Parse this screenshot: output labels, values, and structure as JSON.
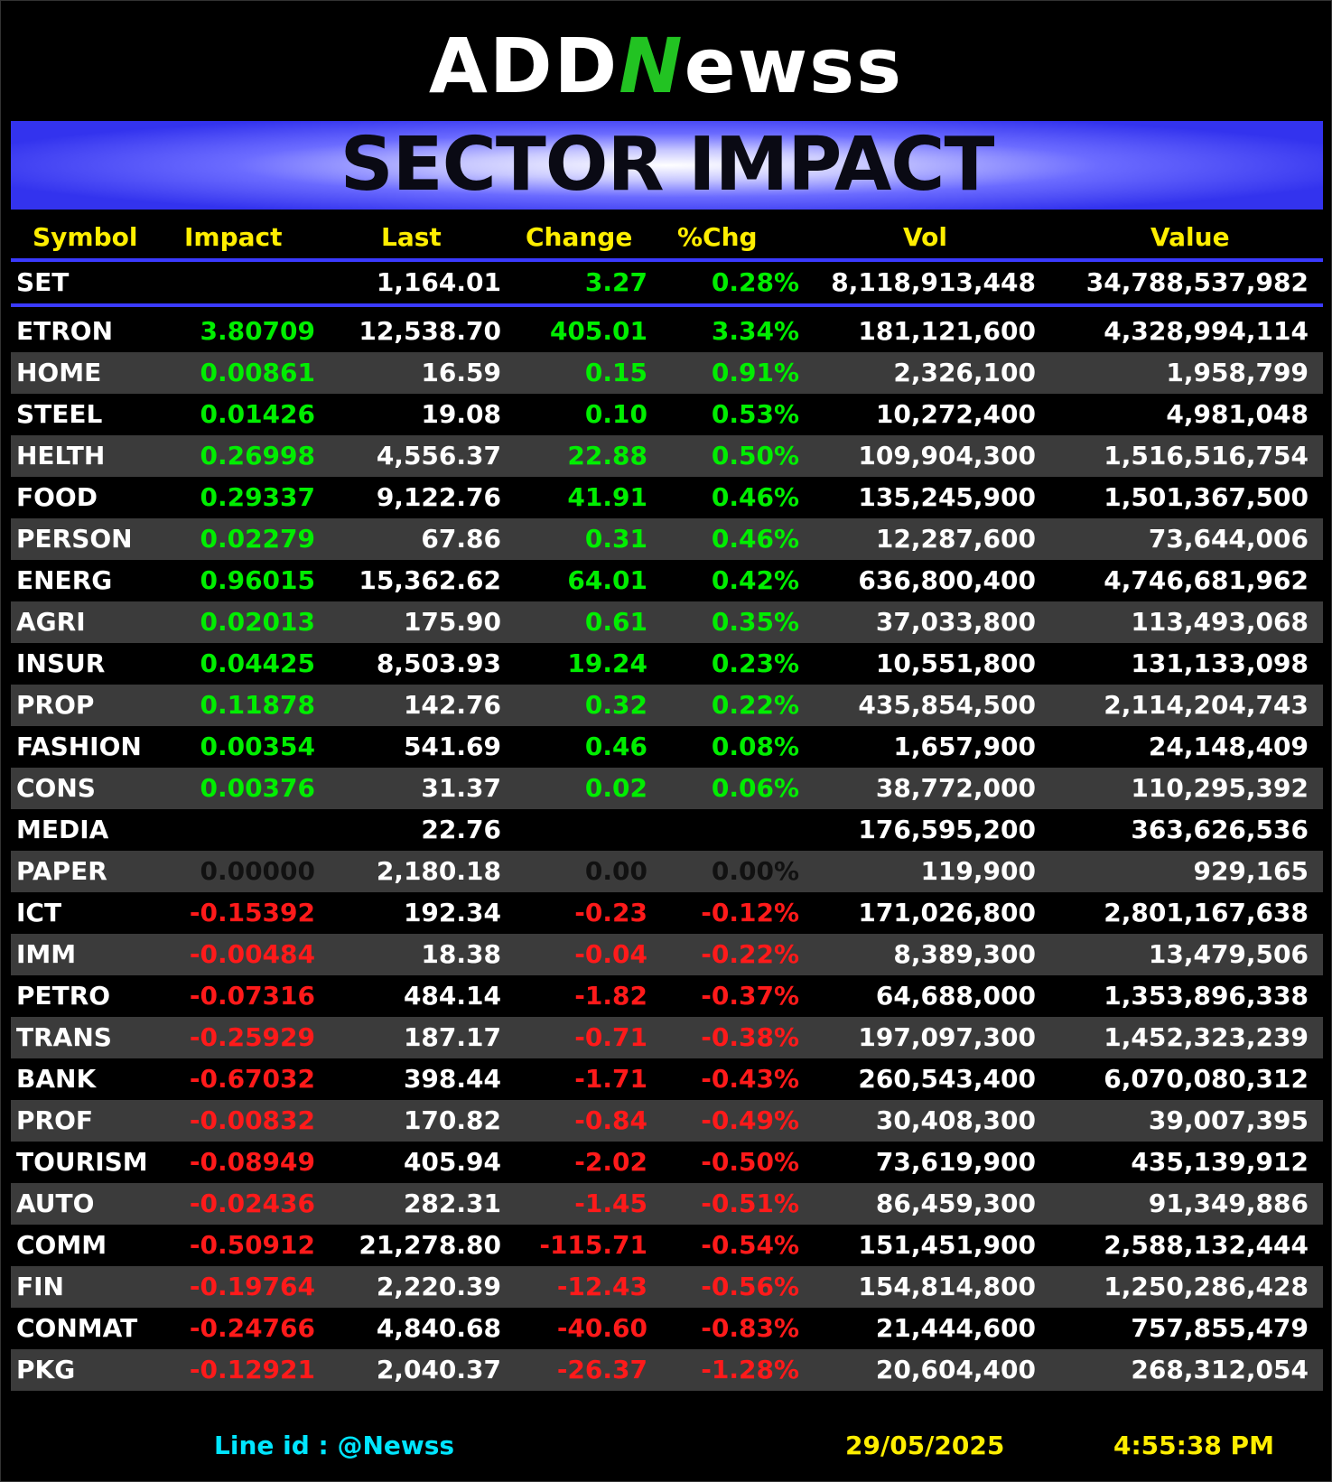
{
  "logo": {
    "part1": "ADD",
    "part2": "N",
    "part3": "ewss"
  },
  "banner": {
    "title": "SECTOR IMPACT"
  },
  "columns": [
    "Symbol",
    "Impact",
    "Last",
    "Change",
    "%Chg",
    "Vol",
    "Value"
  ],
  "colors": {
    "positive": "#00ee00",
    "negative": "#ff1a1a",
    "header": "#ffee00",
    "accent_line": "#3a3aff",
    "footer_line": "#00e5ff"
  },
  "index": {
    "symbol": "SET",
    "impact": "",
    "last": "1,164.01",
    "change": "3.27",
    "pct": "0.28%",
    "vol": "8,118,913,448",
    "value": "34,788,537,982"
  },
  "rows": [
    {
      "symbol": "ETRON",
      "impact": "3.80709",
      "last": "12,538.70",
      "change": "405.01",
      "pct": "3.34%",
      "vol": "181,121,600",
      "value": "4,328,994,114",
      "dir": "pos"
    },
    {
      "symbol": "HOME",
      "impact": "0.00861",
      "last": "16.59",
      "change": "0.15",
      "pct": "0.91%",
      "vol": "2,326,100",
      "value": "1,958,799",
      "dir": "pos"
    },
    {
      "symbol": "STEEL",
      "impact": "0.01426",
      "last": "19.08",
      "change": "0.10",
      "pct": "0.53%",
      "vol": "10,272,400",
      "value": "4,981,048",
      "dir": "pos"
    },
    {
      "symbol": "HELTH",
      "impact": "0.26998",
      "last": "4,556.37",
      "change": "22.88",
      "pct": "0.50%",
      "vol": "109,904,300",
      "value": "1,516,516,754",
      "dir": "pos"
    },
    {
      "symbol": "FOOD",
      "impact": "0.29337",
      "last": "9,122.76",
      "change": "41.91",
      "pct": "0.46%",
      "vol": "135,245,900",
      "value": "1,501,367,500",
      "dir": "pos"
    },
    {
      "symbol": "PERSON",
      "impact": "0.02279",
      "last": "67.86",
      "change": "0.31",
      "pct": "0.46%",
      "vol": "12,287,600",
      "value": "73,644,006",
      "dir": "pos"
    },
    {
      "symbol": "ENERG",
      "impact": "0.96015",
      "last": "15,362.62",
      "change": "64.01",
      "pct": "0.42%",
      "vol": "636,800,400",
      "value": "4,746,681,962",
      "dir": "pos"
    },
    {
      "symbol": "AGRI",
      "impact": "0.02013",
      "last": "175.90",
      "change": "0.61",
      "pct": "0.35%",
      "vol": "37,033,800",
      "value": "113,493,068",
      "dir": "pos"
    },
    {
      "symbol": "INSUR",
      "impact": "0.04425",
      "last": "8,503.93",
      "change": "19.24",
      "pct": "0.23%",
      "vol": "10,551,800",
      "value": "131,133,098",
      "dir": "pos"
    },
    {
      "symbol": "PROP",
      "impact": "0.11878",
      "last": "142.76",
      "change": "0.32",
      "pct": "0.22%",
      "vol": "435,854,500",
      "value": "2,114,204,743",
      "dir": "pos"
    },
    {
      "symbol": "FASHION",
      "impact": "0.00354",
      "last": "541.69",
      "change": "0.46",
      "pct": "0.08%",
      "vol": "1,657,900",
      "value": "24,148,409",
      "dir": "pos"
    },
    {
      "symbol": "CONS",
      "impact": "0.00376",
      "last": "31.37",
      "change": "0.02",
      "pct": "0.06%",
      "vol": "38,772,000",
      "value": "110,295,392",
      "dir": "pos"
    },
    {
      "symbol": "MEDIA",
      "impact": "",
      "last": "22.76",
      "change": "",
      "pct": "",
      "vol": "176,595,200",
      "value": "363,626,536",
      "dir": "wht"
    },
    {
      "symbol": "PAPER",
      "impact": "0.00000",
      "last": "2,180.18",
      "change": "0.00",
      "pct": "0.00%",
      "vol": "119,900",
      "value": "929,165",
      "dir": "zero"
    },
    {
      "symbol": "ICT",
      "impact": "-0.15392",
      "last": "192.34",
      "change": "-0.23",
      "pct": "-0.12%",
      "vol": "171,026,800",
      "value": "2,801,167,638",
      "dir": "neg"
    },
    {
      "symbol": "IMM",
      "impact": "-0.00484",
      "last": "18.38",
      "change": "-0.04",
      "pct": "-0.22%",
      "vol": "8,389,300",
      "value": "13,479,506",
      "dir": "neg"
    },
    {
      "symbol": "PETRO",
      "impact": "-0.07316",
      "last": "484.14",
      "change": "-1.82",
      "pct": "-0.37%",
      "vol": "64,688,000",
      "value": "1,353,896,338",
      "dir": "neg"
    },
    {
      "symbol": "TRANS",
      "impact": "-0.25929",
      "last": "187.17",
      "change": "-0.71",
      "pct": "-0.38%",
      "vol": "197,097,300",
      "value": "1,452,323,239",
      "dir": "neg"
    },
    {
      "symbol": "BANK",
      "impact": "-0.67032",
      "last": "398.44",
      "change": "-1.71",
      "pct": "-0.43%",
      "vol": "260,543,400",
      "value": "6,070,080,312",
      "dir": "neg"
    },
    {
      "symbol": "PROF",
      "impact": "-0.00832",
      "last": "170.82",
      "change": "-0.84",
      "pct": "-0.49%",
      "vol": "30,408,300",
      "value": "39,007,395",
      "dir": "neg"
    },
    {
      "symbol": "TOURISM",
      "impact": "-0.08949",
      "last": "405.94",
      "change": "-2.02",
      "pct": "-0.50%",
      "vol": "73,619,900",
      "value": "435,139,912",
      "dir": "neg"
    },
    {
      "symbol": "AUTO",
      "impact": "-0.02436",
      "last": "282.31",
      "change": "-1.45",
      "pct": "-0.51%",
      "vol": "86,459,300",
      "value": "91,349,886",
      "dir": "neg"
    },
    {
      "symbol": "COMM",
      "impact": "-0.50912",
      "last": "21,278.80",
      "change": "-115.71",
      "pct": "-0.54%",
      "vol": "151,451,900",
      "value": "2,588,132,444",
      "dir": "neg"
    },
    {
      "symbol": "FIN",
      "impact": "-0.19764",
      "last": "2,220.39",
      "change": "-12.43",
      "pct": "-0.56%",
      "vol": "154,814,800",
      "value": "1,250,286,428",
      "dir": "neg"
    },
    {
      "symbol": "CONMAT",
      "impact": "-0.24766",
      "last": "4,840.68",
      "change": "-40.60",
      "pct": "-0.83%",
      "vol": "21,444,600",
      "value": "757,855,479",
      "dir": "neg"
    },
    {
      "symbol": "PKG",
      "impact": "-0.12921",
      "last": "2,040.37",
      "change": "-26.37",
      "pct": "-1.28%",
      "vol": "20,604,400",
      "value": "268,312,054",
      "dir": "neg"
    }
  ],
  "footer": {
    "line_id": "Line id  : @Newss",
    "date": "29/05/2025",
    "time": "4:55:38 PM"
  }
}
